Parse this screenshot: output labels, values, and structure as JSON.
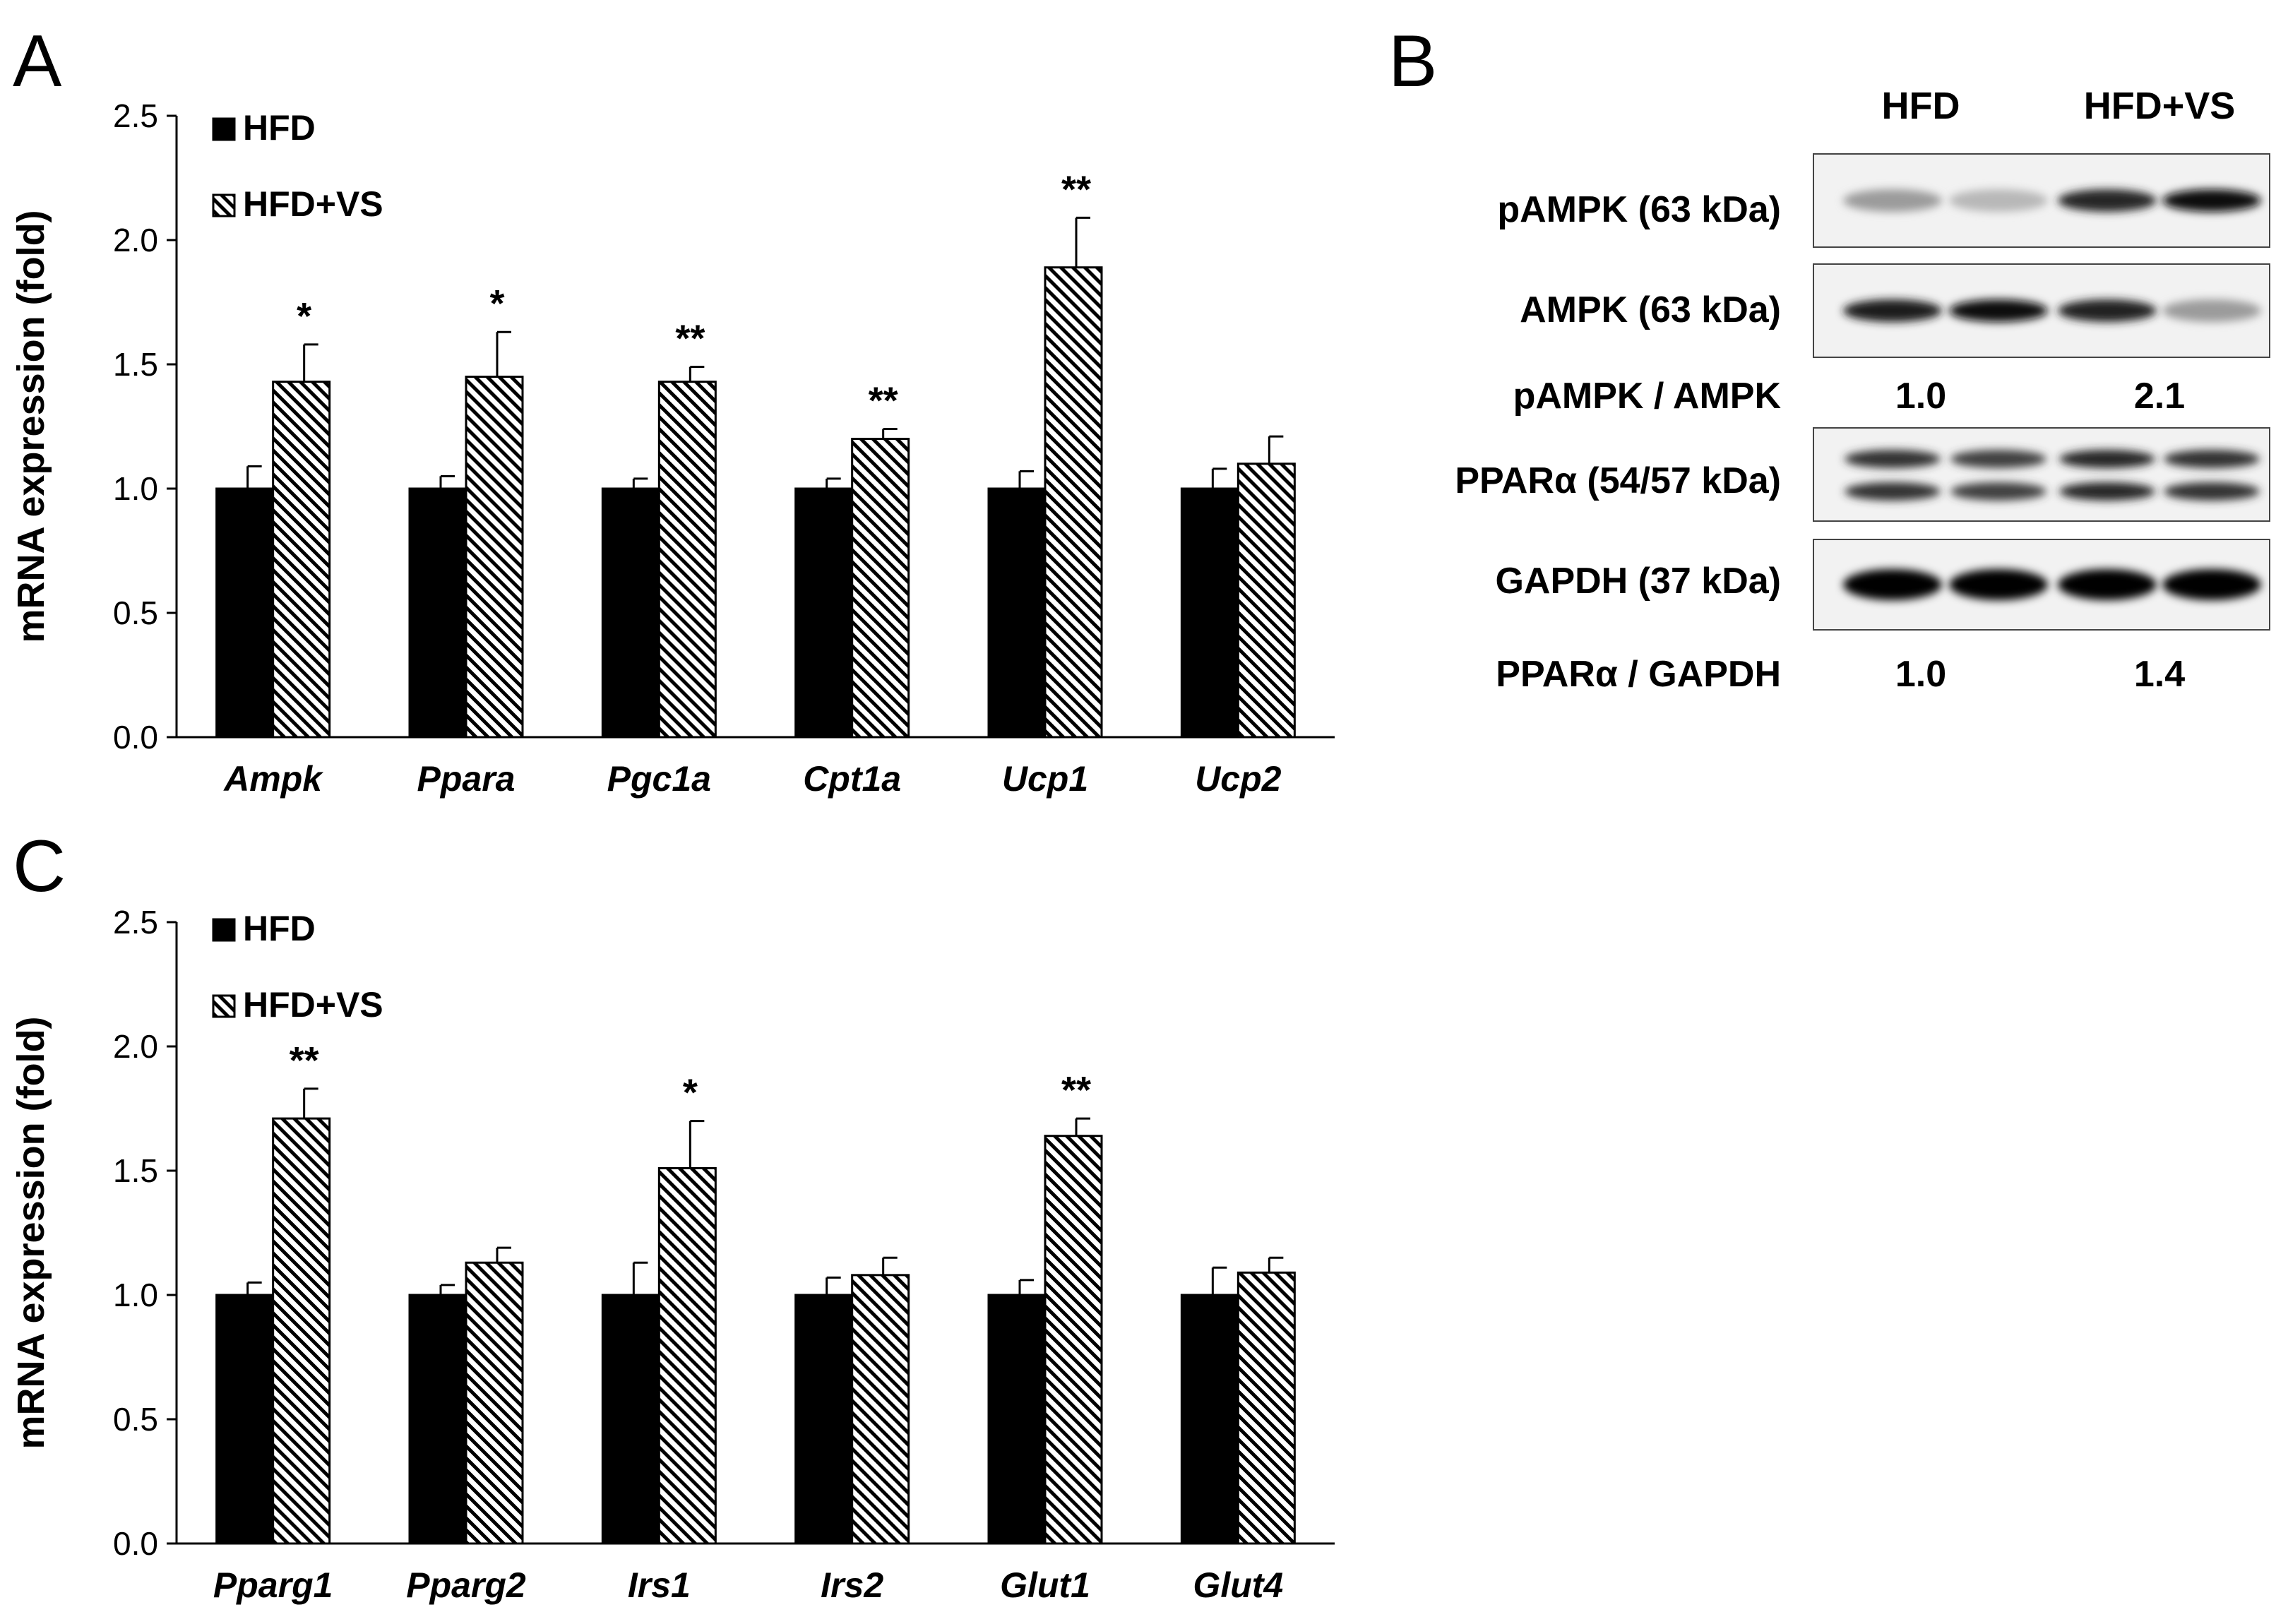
{
  "panels": {
    "A": "A",
    "B": "B",
    "C": "C"
  },
  "colors": {
    "hfd": "#000000",
    "hfd_vs_hatch": "#000000",
    "background": "#ffffff"
  },
  "chart_data": [
    {
      "panel": "A",
      "type": "bar",
      "ylabel": "mRNA expression (fold)",
      "ylim": [
        0,
        2.5
      ],
      "yticks": [
        "0.0",
        "0.5",
        "1.0",
        "1.5",
        "2.0",
        "2.5"
      ],
      "legend_position": "top-left",
      "categories": [
        "Ampk",
        "Ppara",
        "Pgc1a",
        "Cpt1a",
        "Ucp1",
        "Ucp2"
      ],
      "series": [
        {
          "name": "HFD",
          "values": [
            1.0,
            1.0,
            1.0,
            1.0,
            1.0,
            1.0
          ],
          "errors": [
            0.09,
            0.05,
            0.04,
            0.04,
            0.07,
            0.08
          ]
        },
        {
          "name": "HFD+VS",
          "values": [
            1.43,
            1.45,
            1.43,
            1.2,
            1.89,
            1.1
          ],
          "errors": [
            0.15,
            0.18,
            0.06,
            0.04,
            0.2,
            0.11
          ]
        }
      ],
      "significance": [
        "*",
        "*",
        "**",
        "**",
        "**",
        ""
      ]
    },
    {
      "panel": "C",
      "type": "bar",
      "ylabel": "mRNA expression (fold)",
      "ylim": [
        0,
        2.5
      ],
      "yticks": [
        "0.0",
        "0.5",
        "1.0",
        "1.5",
        "2.0",
        "2.5"
      ],
      "legend_position": "top-left",
      "categories": [
        "Pparg1",
        "Pparg2",
        "Irs1",
        "Irs2",
        "Glut1",
        "Glut4"
      ],
      "series": [
        {
          "name": "HFD",
          "values": [
            1.0,
            1.0,
            1.0,
            1.0,
            1.0,
            1.0
          ],
          "errors": [
            0.05,
            0.04,
            0.13,
            0.07,
            0.06,
            0.11
          ]
        },
        {
          "name": "HFD+VS",
          "values": [
            1.71,
            1.13,
            1.51,
            1.08,
            1.64,
            1.09
          ],
          "errors": [
            0.12,
            0.06,
            0.19,
            0.07,
            0.07,
            0.06
          ]
        }
      ],
      "significance": [
        "**",
        "",
        "*",
        "",
        "**",
        ""
      ]
    }
  ],
  "blot": {
    "groups": [
      "HFD",
      "HFD+VS"
    ],
    "rows": [
      {
        "label": "pAMPK (63 kDa)",
        "type": "band",
        "intensities": [
          0.35,
          0.22,
          0.85,
          0.95
        ]
      },
      {
        "label": "AMPK (63 kDa)",
        "type": "band",
        "intensities": [
          0.9,
          0.95,
          0.88,
          0.35
        ]
      },
      {
        "label": "pAMPK / AMPK",
        "type": "ratio",
        "values": [
          "1.0",
          "2.1"
        ]
      },
      {
        "label": "PPARα (54/57 kDa)",
        "type": "doubleband",
        "intensities": [
          0.8,
          0.75,
          0.85,
          0.8
        ]
      },
      {
        "label": "GAPDH (37 kDa)",
        "type": "band",
        "intensities": [
          1.0,
          1.0,
          1.0,
          1.0
        ]
      },
      {
        "label": "PPARα / GAPDH",
        "type": "ratio",
        "values": [
          "1.0",
          "1.4"
        ]
      }
    ]
  }
}
